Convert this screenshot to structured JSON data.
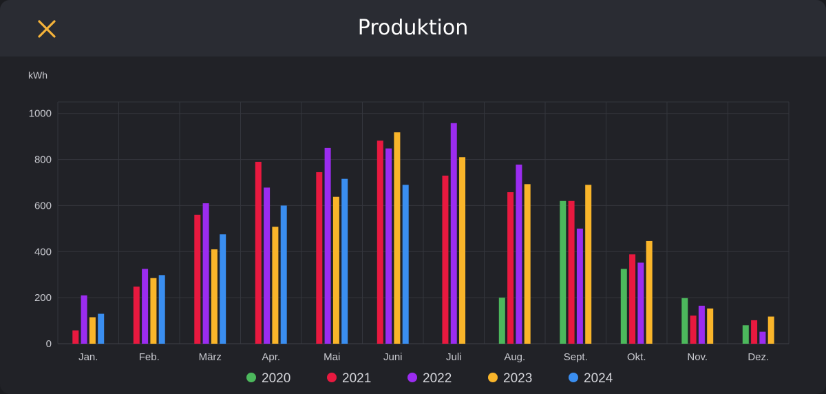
{
  "header": {
    "title": "Produktion",
    "close_icon": "close-icon"
  },
  "colors": {
    "accent": "#f5b33a",
    "2020": "#4cb85c",
    "2021": "#e8193f",
    "2022": "#9b2cf0",
    "2023": "#f9b52a",
    "2024": "#3a8ef0"
  },
  "chart_data": {
    "type": "bar",
    "ylabel": "kWh",
    "xlabel": "",
    "ylim": [
      0,
      1050
    ],
    "yticks": [
      0,
      200,
      400,
      600,
      800,
      1000
    ],
    "grid": true,
    "legend": "bottom",
    "categories": [
      "Jan.",
      "Feb.",
      "März",
      "Apr.",
      "Mai",
      "Juni",
      "Juli",
      "Aug.",
      "Sept.",
      "Okt.",
      "Nov.",
      "Dez."
    ],
    "series": [
      {
        "name": "2020",
        "color": "#4cb85c",
        "values": [
          null,
          null,
          null,
          null,
          null,
          null,
          null,
          200,
          620,
          325,
          198,
          80
        ]
      },
      {
        "name": "2021",
        "color": "#e8193f",
        "values": [
          58,
          248,
          560,
          790,
          745,
          882,
          730,
          658,
          620,
          388,
          122,
          102
        ]
      },
      {
        "name": "2022",
        "color": "#9b2cf0",
        "values": [
          210,
          325,
          610,
          678,
          850,
          848,
          958,
          778,
          500,
          352,
          165,
          52
        ]
      },
      {
        "name": "2023",
        "color": "#f9b52a",
        "values": [
          115,
          285,
          410,
          508,
          638,
          918,
          810,
          693,
          690,
          446,
          153,
          118
        ]
      },
      {
        "name": "2024",
        "color": "#3a8ef0",
        "values": [
          130,
          298,
          475,
          600,
          716,
          690,
          null,
          null,
          null,
          null,
          null,
          null
        ]
      }
    ]
  }
}
